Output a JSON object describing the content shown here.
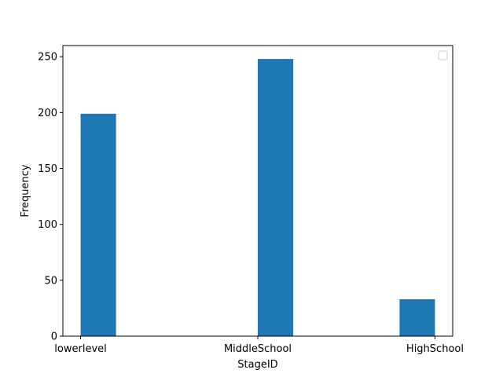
{
  "chart_data": {
    "type": "bar",
    "categories": [
      "lowerlevel",
      "MiddleSchool",
      "HighSchool"
    ],
    "x_positions": [
      0,
      2,
      4
    ],
    "x_tick_positions": [
      0,
      1,
      2
    ],
    "bins": [
      {
        "start": 0.0,
        "end": 0.2,
        "value": 199
      },
      {
        "start": 0.2,
        "end": 0.4,
        "value": 0
      },
      {
        "start": 0.4,
        "end": 0.6,
        "value": 0
      },
      {
        "start": 0.6,
        "end": 0.8,
        "value": 0
      },
      {
        "start": 0.8,
        "end": 1.0,
        "value": 0
      },
      {
        "start": 1.0,
        "end": 1.2,
        "value": 248
      },
      {
        "start": 1.2,
        "end": 1.4,
        "value": 0
      },
      {
        "start": 1.4,
        "end": 1.6,
        "value": 0
      },
      {
        "start": 1.6,
        "end": 1.8,
        "value": 0
      },
      {
        "start": 1.8,
        "end": 2.0,
        "value": 33
      }
    ],
    "values": [
      199,
      248,
      33
    ],
    "xlabel": "StageID",
    "ylabel": "Frequency",
    "xlim": [
      -0.1,
      2.1
    ],
    "ylim": [
      0,
      260
    ],
    "yticks": [
      0,
      50,
      100,
      150,
      200,
      250
    ],
    "grid": false,
    "legend": {
      "placement": "upper-right",
      "entries": []
    },
    "bar_color": "#1f77b4"
  }
}
